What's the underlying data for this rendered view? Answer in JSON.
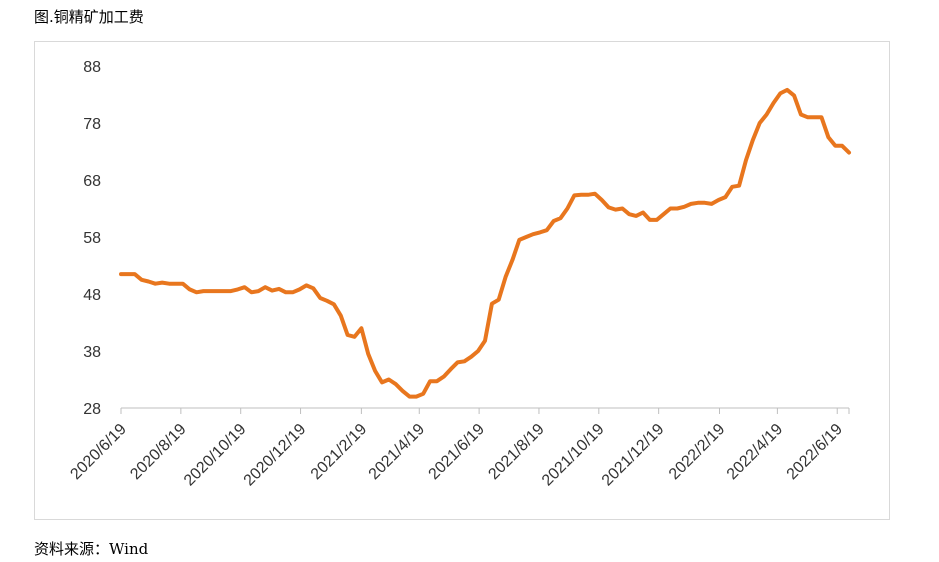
{
  "figure_title": "图.铜精矿加工费",
  "source_text": "资料来源：Wind",
  "colors": {
    "line": "#e8761e",
    "axis": "#bfbfbf",
    "text": "#333333",
    "frame": "#d9d9d9"
  },
  "chart_data": {
    "type": "line",
    "title": "",
    "xlabel": "",
    "ylabel": "",
    "ylim": [
      28,
      88
    ],
    "yticks": [
      28,
      38,
      48,
      58,
      68,
      78,
      88
    ],
    "grid": false,
    "legend": "none",
    "xticks": [
      "2020/6/19",
      "2020/8/19",
      "2020/10/19",
      "2020/12/19",
      "2021/2/19",
      "2021/4/19",
      "2021/6/19",
      "2021/8/19",
      "2021/10/19",
      "2021/12/19",
      "2022/2/19",
      "2022/4/19",
      "2022/6/19"
    ],
    "series": [
      {
        "name": "",
        "points": [
          [
            "2020-06-19",
            51.5
          ],
          [
            "2020-06-26",
            51.5
          ],
          [
            "2020-07-03",
            51.5
          ],
          [
            "2020-07-10",
            50.5
          ],
          [
            "2020-07-17",
            50.2
          ],
          [
            "2020-07-24",
            49.8
          ],
          [
            "2020-07-31",
            50.0
          ],
          [
            "2020-08-07",
            49.8
          ],
          [
            "2020-08-14",
            49.8
          ],
          [
            "2020-08-21",
            49.8
          ],
          [
            "2020-08-28",
            48.8
          ],
          [
            "2020-09-04",
            48.3
          ],
          [
            "2020-09-11",
            48.5
          ],
          [
            "2020-09-18",
            48.5
          ],
          [
            "2020-09-25",
            48.5
          ],
          [
            "2020-10-02",
            48.5
          ],
          [
            "2020-10-09",
            48.5
          ],
          [
            "2020-10-16",
            48.8
          ],
          [
            "2020-10-23",
            49.2
          ],
          [
            "2020-10-30",
            48.3
          ],
          [
            "2020-11-06",
            48.5
          ],
          [
            "2020-11-13",
            49.2
          ],
          [
            "2020-11-20",
            48.6
          ],
          [
            "2020-11-27",
            48.9
          ],
          [
            "2020-12-04",
            48.3
          ],
          [
            "2020-12-11",
            48.3
          ],
          [
            "2020-12-18",
            48.8
          ],
          [
            "2020-12-25",
            49.5
          ],
          [
            "2021-01-01",
            49.0
          ],
          [
            "2021-01-08",
            47.3
          ],
          [
            "2021-01-15",
            46.8
          ],
          [
            "2021-01-22",
            46.2
          ],
          [
            "2021-01-29",
            44.2
          ],
          [
            "2021-02-05",
            40.8
          ],
          [
            "2021-02-12",
            40.5
          ],
          [
            "2021-02-19",
            42.0
          ],
          [
            "2021-02-26",
            37.5
          ],
          [
            "2021-03-05",
            34.5
          ],
          [
            "2021-03-12",
            32.5
          ],
          [
            "2021-03-19",
            33.0
          ],
          [
            "2021-03-26",
            32.2
          ],
          [
            "2021-04-02",
            31.0
          ],
          [
            "2021-04-09",
            30.0
          ],
          [
            "2021-04-16",
            30.0
          ],
          [
            "2021-04-23",
            30.5
          ],
          [
            "2021-04-30",
            32.7
          ],
          [
            "2021-05-07",
            32.7
          ],
          [
            "2021-05-14",
            33.5
          ],
          [
            "2021-05-21",
            34.8
          ],
          [
            "2021-05-28",
            36.0
          ],
          [
            "2021-06-04",
            36.2
          ],
          [
            "2021-06-11",
            37.0
          ],
          [
            "2021-06-18",
            38.0
          ],
          [
            "2021-06-25",
            39.8
          ],
          [
            "2021-07-02",
            46.3
          ],
          [
            "2021-07-09",
            47.0
          ],
          [
            "2021-07-16",
            51.0
          ],
          [
            "2021-07-23",
            54.0
          ],
          [
            "2021-07-30",
            57.5
          ],
          [
            "2021-08-06",
            58.0
          ],
          [
            "2021-08-13",
            58.5
          ],
          [
            "2021-08-20",
            58.8
          ],
          [
            "2021-08-27",
            59.2
          ],
          [
            "2021-09-03",
            60.8
          ],
          [
            "2021-09-10",
            61.3
          ],
          [
            "2021-09-17",
            63.0
          ],
          [
            "2021-09-24",
            65.3
          ],
          [
            "2021-10-01",
            65.4
          ],
          [
            "2021-10-08",
            65.4
          ],
          [
            "2021-10-15",
            65.6
          ],
          [
            "2021-10-22",
            64.5
          ],
          [
            "2021-10-29",
            63.2
          ],
          [
            "2021-11-05",
            62.8
          ],
          [
            "2021-11-12",
            63.0
          ],
          [
            "2021-11-19",
            62.0
          ],
          [
            "2021-11-26",
            61.7
          ],
          [
            "2021-12-03",
            62.3
          ],
          [
            "2021-12-10",
            61.0
          ],
          [
            "2021-12-17",
            61.0
          ],
          [
            "2021-12-24",
            62.0
          ],
          [
            "2021-12-31",
            63.0
          ],
          [
            "2022-01-07",
            63.0
          ],
          [
            "2022-01-14",
            63.3
          ],
          [
            "2022-01-21",
            63.8
          ],
          [
            "2022-01-28",
            64.0
          ],
          [
            "2022-02-04",
            64.0
          ],
          [
            "2022-02-11",
            63.8
          ],
          [
            "2022-02-18",
            64.5
          ],
          [
            "2022-02-25",
            65.0
          ],
          [
            "2022-03-04",
            66.8
          ],
          [
            "2022-03-11",
            67.0
          ],
          [
            "2022-03-18",
            71.5
          ],
          [
            "2022-03-25",
            75.0
          ],
          [
            "2022-04-01",
            78.0
          ],
          [
            "2022-04-08",
            79.5
          ],
          [
            "2022-04-15",
            81.5
          ],
          [
            "2022-04-22",
            83.2
          ],
          [
            "2022-04-29",
            83.8
          ],
          [
            "2022-05-06",
            82.8
          ],
          [
            "2022-05-13",
            79.5
          ],
          [
            "2022-05-20",
            79.0
          ],
          [
            "2022-05-27",
            79.0
          ],
          [
            "2022-06-03",
            79.0
          ],
          [
            "2022-06-10",
            75.5
          ],
          [
            "2022-06-17",
            74.0
          ],
          [
            "2022-06-24",
            74.0
          ],
          [
            "2022-07-01",
            72.8
          ]
        ]
      }
    ]
  }
}
